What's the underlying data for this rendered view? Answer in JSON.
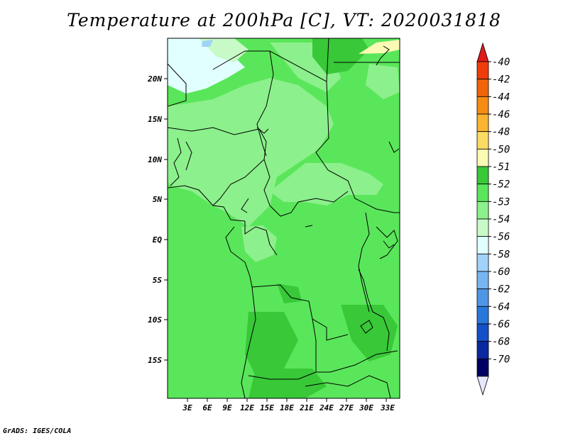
{
  "title": "Temperature at 200hPa [C], VT: 2020031818",
  "credit": "GrADS: IGES/COLA",
  "map": {
    "lon_labels": [
      "3E",
      "6E",
      "9E",
      "12E",
      "15E",
      "18E",
      "21E",
      "24E",
      "27E",
      "30E",
      "33E"
    ],
    "lat_labels": [
      "20N",
      "15N",
      "10N",
      "5N",
      "EQ",
      "5S",
      "10S",
      "15S"
    ]
  },
  "colorbar": {
    "labels": [
      "-40",
      "-42",
      "-44",
      "-46",
      "-48",
      "-50",
      "-51",
      "-52",
      "-53",
      "-54",
      "-56",
      "-58",
      "-60",
      "-62",
      "-64",
      "-66",
      "-68",
      "-70"
    ],
    "colors": [
      "#e01a1a",
      "#f03c0a",
      "#f0640a",
      "#f58c14",
      "#fab432",
      "#fadc64",
      "#fafab4",
      "#38c838",
      "#5ae65a",
      "#8cf08c",
      "#c8fac8",
      "#e1ffff",
      "#a0d2fa",
      "#78b4f0",
      "#5096e6",
      "#2878dc",
      "#1450c8",
      "#0a28a0",
      "#000064",
      "#e6e6fa"
    ]
  }
}
